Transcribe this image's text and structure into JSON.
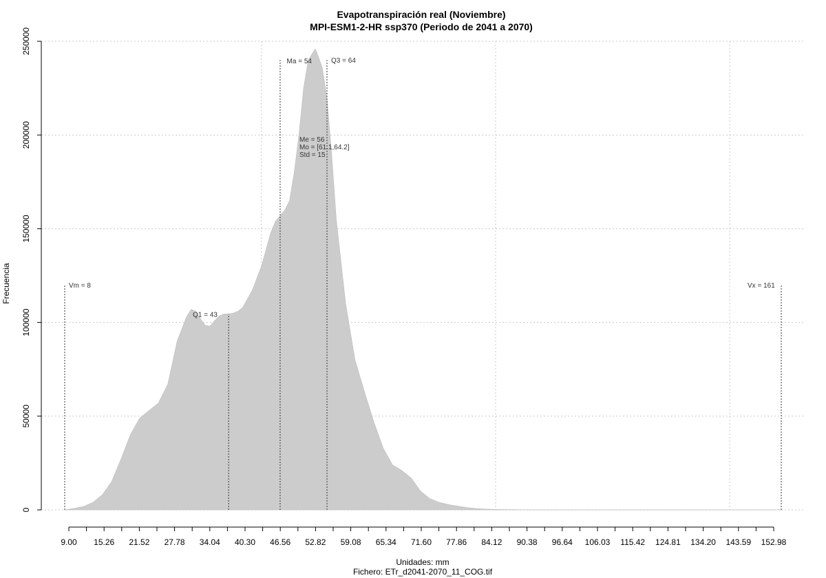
{
  "chart_data": {
    "type": "area",
    "title": "Evapotranspiración real (Noviembre)",
    "subtitle": "MPI-ESM1-2-HR ssp370 (Periodo de 2041 a 2070)",
    "xlabel": "Unidades: mm",
    "ylabel": "Frecuencia",
    "file_label": "Fichero: ETr_d2041-2070_11_COG.tif",
    "xlim": [
      7,
      163
    ],
    "ylim": [
      0,
      250000
    ],
    "x_ticks": [
      "9.00",
      "15.26",
      "21.52",
      "27.78",
      "34.04",
      "40.30",
      "46.56",
      "52.82",
      "59.08",
      "65.34",
      "71.60",
      "77.86",
      "84.12",
      "90.38",
      "96.64",
      "106.03",
      "115.42",
      "124.81",
      "134.20",
      "143.59",
      "152.98"
    ],
    "y_ticks": [
      0,
      50000,
      100000,
      150000,
      200000,
      250000
    ],
    "series": [
      {
        "x": [
          8,
          10,
          12,
          14,
          16,
          18,
          20,
          22,
          24,
          26,
          28,
          30,
          32,
          34,
          35,
          36,
          37,
          38,
          39,
          40,
          41,
          42,
          43,
          44,
          45,
          46,
          48,
          50,
          52,
          53,
          54,
          55,
          56,
          57,
          58,
          59,
          60,
          61,
          61.5,
          62,
          63,
          64,
          65,
          66,
          68,
          70,
          72,
          74,
          76,
          78,
          80,
          82,
          84,
          86,
          88,
          90,
          92,
          94,
          96,
          98,
          100,
          105,
          110,
          120,
          130,
          140,
          150,
          161
        ],
        "y": [
          0,
          800,
          1800,
          4000,
          8000,
          15000,
          27000,
          40000,
          49000,
          53000,
          57000,
          67000,
          90000,
          103000,
          107000,
          106000,
          102000,
          98500,
          98000,
          101000,
          103500,
          104500,
          104500,
          105000,
          106000,
          108000,
          117000,
          130000,
          148000,
          154000,
          157000,
          160000,
          165000,
          180000,
          200000,
          225000,
          240000,
          244000,
          246000,
          243000,
          236000,
          220000,
          190000,
          155000,
          110000,
          80000,
          63000,
          47000,
          33000,
          24000,
          21000,
          17000,
          10000,
          6000,
          4000,
          2800,
          2000,
          1200,
          700,
          400,
          250,
          100,
          50,
          20,
          10,
          5,
          2,
          0
        ]
      }
    ],
    "markers": [
      {
        "x": 8,
        "label": "Vm = 8",
        "ymax": 120000
      },
      {
        "x": 43,
        "label": "Q1 = 43",
        "ymax": 104500
      },
      {
        "x": 54,
        "label": "Ma = 54",
        "ymax": 240000
      },
      {
        "x": 64,
        "label": "Q3 = 64",
        "ymax": 240000
      },
      {
        "x": 161,
        "label": "Vx = 161",
        "ymax": 120000
      }
    ],
    "stats_labels": [
      "Me = 56",
      "Mo = [61.1,64.2]",
      "Std = 15"
    ],
    "grid": true,
    "colors": {
      "fill": "#cccccc",
      "grid": "#c8c8c8",
      "marker": "#333333"
    }
  }
}
